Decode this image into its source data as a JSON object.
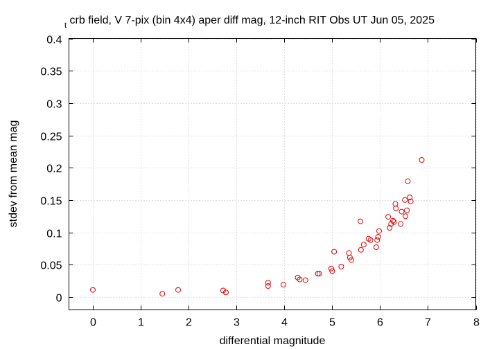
{
  "chart_data": {
    "type": "scatter",
    "title_sub": "t",
    "title": "crb field, V 7-pix (bin 4x4) aper diff mag,  12-inch RIT Obs UT Jun 05, 2025",
    "xlabel": "differential magnitude",
    "ylabel": "stdev from mean mag",
    "xlim": [
      -0.5,
      8
    ],
    "ylim": [
      -0.02,
      0.4
    ],
    "xticks": [
      "0",
      "1",
      "2",
      "3",
      "4",
      "5",
      "6",
      "7",
      "8"
    ],
    "yticks": [
      "0",
      "0.05",
      "0.1",
      "0.15",
      "0.2",
      "0.25",
      "0.3",
      "0.35",
      "0.4"
    ],
    "grid": true,
    "point_color": "#e00000",
    "points": [
      [
        0.0,
        0.011
      ],
      [
        1.45,
        0.005
      ],
      [
        1.78,
        0.011
      ],
      [
        2.72,
        0.01
      ],
      [
        2.78,
        0.007
      ],
      [
        3.66,
        0.022
      ],
      [
        3.66,
        0.017
      ],
      [
        3.98,
        0.019
      ],
      [
        4.28,
        0.03
      ],
      [
        4.32,
        0.027
      ],
      [
        4.44,
        0.026
      ],
      [
        4.7,
        0.036
      ],
      [
        4.73,
        0.036
      ],
      [
        4.98,
        0.044
      ],
      [
        5.0,
        0.04
      ],
      [
        5.04,
        0.07
      ],
      [
        5.19,
        0.047
      ],
      [
        5.35,
        0.068
      ],
      [
        5.37,
        0.061
      ],
      [
        5.4,
        0.057
      ],
      [
        5.59,
        0.117
      ],
      [
        5.6,
        0.073
      ],
      [
        5.66,
        0.081
      ],
      [
        5.76,
        0.09
      ],
      [
        5.8,
        0.088
      ],
      [
        5.92,
        0.077
      ],
      [
        5.94,
        0.088
      ],
      [
        5.96,
        0.093
      ],
      [
        5.98,
        0.102
      ],
      [
        6.17,
        0.124
      ],
      [
        6.2,
        0.107
      ],
      [
        6.23,
        0.113
      ],
      [
        6.27,
        0.118
      ],
      [
        6.29,
        0.116
      ],
      [
        6.32,
        0.144
      ],
      [
        6.33,
        0.137
      ],
      [
        6.43,
        0.113
      ],
      [
        6.45,
        0.132
      ],
      [
        6.52,
        0.15
      ],
      [
        6.53,
        0.125
      ],
      [
        6.56,
        0.134
      ],
      [
        6.58,
        0.179
      ],
      [
        6.62,
        0.154
      ],
      [
        6.64,
        0.148
      ],
      [
        6.87,
        0.212
      ]
    ]
  }
}
